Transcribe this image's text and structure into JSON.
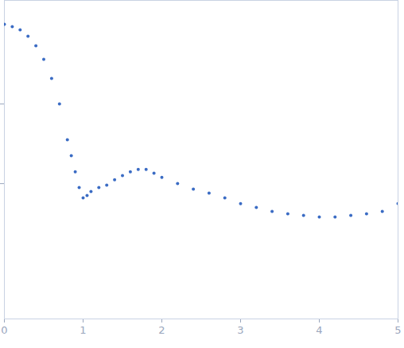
{
  "chart_data": {
    "type": "scatter",
    "x": [
      0.0,
      0.1,
      0.2,
      0.3,
      0.4,
      0.5,
      0.6,
      0.7,
      0.8,
      0.85,
      0.9,
      0.95,
      1.0,
      1.05,
      1.1,
      1.2,
      1.3,
      1.4,
      1.5,
      1.6,
      1.7,
      1.8,
      1.9,
      2.0,
      2.2,
      2.4,
      2.6,
      2.8,
      3.0,
      3.2,
      3.4,
      3.6,
      3.8,
      4.0,
      4.2,
      4.4,
      4.6,
      4.8,
      5.0
    ],
    "values": [
      10,
      9.33,
      8.51,
      7.08,
      5.37,
      3.63,
      2.09,
      1,
      0.355,
      0.224,
      0.141,
      0.0891,
      0.0661,
      0.0708,
      0.0794,
      0.0891,
      0.0955,
      0.112,
      0.126,
      0.141,
      0.151,
      0.151,
      0.135,
      0.12,
      0.1,
      0.0851,
      0.0759,
      0.0661,
      0.0562,
      0.0501,
      0.0447,
      0.0417,
      0.0398,
      0.038,
      0.038,
      0.0398,
      0.0417,
      0.0447,
      0.0562
    ],
    "color": "#3b6cc4",
    "marker": "circle",
    "log": "y",
    "xlim": [
      0,
      5
    ],
    "xticks": [
      0,
      1,
      2,
      3,
      4,
      5
    ],
    "ylim": [
      0.002,
      20
    ],
    "yticks": [
      0.1,
      1
    ],
    "tick_labels": "x",
    "grid": false
  }
}
